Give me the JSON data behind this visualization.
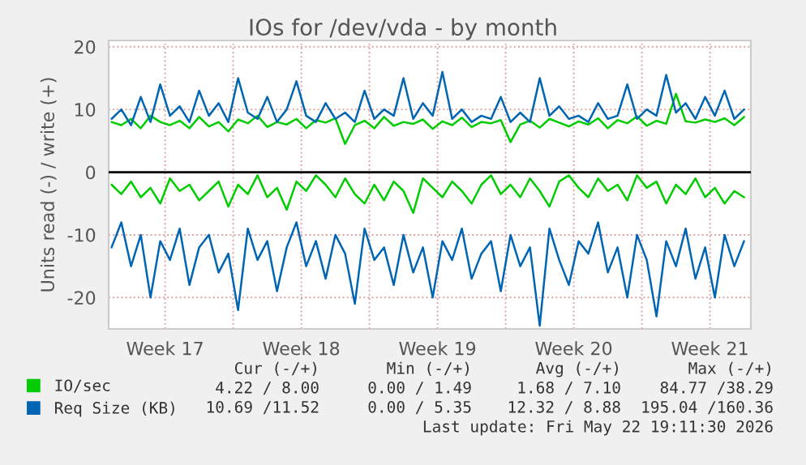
{
  "chart_data": {
    "type": "line",
    "title": "IOs for /dev/vda - by month",
    "ylabel": "Units read (-) / write (+)",
    "x": [
      "2026-04-20T18:00",
      "2026-04-21T06:00",
      "2026-04-21T18:00",
      "2026-04-22T06:00",
      "2026-04-22T18:00",
      "2026-04-23T06:00",
      "2026-04-23T18:00",
      "2026-04-24T06:00",
      "2026-04-24T18:00",
      "2026-04-25T06:00",
      "2026-04-25T18:00",
      "2026-04-26T06:00",
      "2026-04-26T18:00",
      "2026-04-27T06:00",
      "2026-04-27T18:00",
      "2026-04-28T06:00",
      "2026-04-28T18:00",
      "2026-04-29T06:00",
      "2026-04-29T18:00",
      "2026-04-30T06:00",
      "2026-04-30T18:00",
      "2026-05-01T06:00",
      "2026-05-01T18:00",
      "2026-05-02T06:00",
      "2026-05-02T18:00",
      "2026-05-03T06:00",
      "2026-05-03T18:00",
      "2026-05-04T06:00",
      "2026-05-04T18:00",
      "2026-05-05T06:00",
      "2026-05-05T18:00",
      "2026-05-06T06:00",
      "2026-05-06T18:00",
      "2026-05-07T06:00",
      "2026-05-07T18:00",
      "2026-05-08T06:00",
      "2026-05-08T18:00",
      "2026-05-09T06:00",
      "2026-05-09T18:00",
      "2026-05-10T06:00",
      "2026-05-10T18:00",
      "2026-05-11T06:00",
      "2026-05-11T18:00",
      "2026-05-12T06:00",
      "2026-05-12T18:00",
      "2026-05-13T06:00",
      "2026-05-13T18:00",
      "2026-05-14T06:00",
      "2026-05-14T18:00",
      "2026-05-15T06:00",
      "2026-05-15T18:00",
      "2026-05-16T06:00",
      "2026-05-16T18:00",
      "2026-05-17T06:00",
      "2026-05-17T18:00",
      "2026-05-18T06:00",
      "2026-05-18T18:00",
      "2026-05-19T06:00",
      "2026-05-19T18:00",
      "2026-05-20T06:00",
      "2026-05-20T18:00",
      "2026-05-21T06:00",
      "2026-05-21T18:00",
      "2026-05-22T06:00",
      "2026-05-22T18:00",
      "2026-05-23T06:00"
    ],
    "series": [
      {
        "name": "IO/sec",
        "color": "#00cc00",
        "values": [
          8,
          7.5,
          8.5,
          7,
          9,
          8,
          7.5,
          8.2,
          7,
          8.8,
          7.3,
          8,
          6.5,
          8.4,
          7.8,
          9,
          7.2,
          8,
          7.6,
          8.5,
          7,
          8.3,
          7.9,
          8.6,
          4.5,
          7.5,
          8.2,
          7,
          8.8,
          7.4,
          8,
          7.7,
          8.4,
          6.9,
          8.1,
          7.5,
          8.7,
          7.2,
          8,
          7.8,
          8.3,
          4.8,
          7.6,
          8.2,
          7.1,
          8.5,
          7.9,
          7.3,
          8.1,
          7.6,
          8.6,
          7,
          8.3,
          7.8,
          8.9,
          7.4,
          8.2,
          7.7,
          12.5,
          8.1,
          7.9,
          8.4,
          8,
          8.6,
          7.5,
          8.8
        ]
      },
      {
        "color": "#00cc00",
        "values": [
          -2,
          -3.5,
          -1.5,
          -4,
          -2.5,
          -5,
          -1,
          -3,
          -2,
          -4.5,
          -3,
          -1.5,
          -5.5,
          -2,
          -3.5,
          -0.5,
          -4,
          -2.5,
          -6,
          -1.5,
          -3,
          -0.5,
          -2,
          -4,
          -1,
          -3.5,
          -5,
          -2,
          -4.5,
          -1.5,
          -3,
          -6.5,
          -1,
          -2.5,
          -4,
          -1.5,
          -3,
          -5,
          -2,
          -0.5,
          -3.5,
          -2,
          -4,
          -1,
          -3,
          -5.5,
          -1.5,
          -0.5,
          -2.5,
          -4,
          -1,
          -3,
          -2,
          -4.5,
          -0.5,
          -2.5,
          -1.5,
          -5,
          -2,
          -3.5,
          -1,
          -4,
          -2.5,
          -5,
          -3,
          -4
        ]
      },
      {
        "name": "Req Size (KB)",
        "color": "#0066b3",
        "values": [
          8.5,
          10,
          7.5,
          12,
          8,
          14,
          9,
          10.5,
          8,
          13,
          9,
          11,
          8,
          15,
          9.5,
          8.5,
          12,
          8,
          10,
          14.5,
          9,
          8,
          11,
          8.5,
          9.5,
          8,
          13,
          8.5,
          10,
          9,
          15,
          8.5,
          11,
          9,
          16,
          8.5,
          10,
          8,
          9,
          8.5,
          12,
          8,
          9.5,
          8,
          15,
          9,
          10.5,
          8.5,
          9,
          8,
          11,
          8.5,
          9,
          14,
          8.5,
          10,
          9,
          15.5,
          9.5,
          11,
          8.5,
          12,
          9,
          13,
          8.5,
          10
        ]
      },
      {
        "color": "#0066b3",
        "values": [
          -12,
          -8,
          -15,
          -10,
          -20,
          -11,
          -14,
          -9,
          -18,
          -12,
          -10,
          -16,
          -13,
          -22,
          -9,
          -14,
          -11,
          -19,
          -12,
          -8,
          -15,
          -11,
          -17,
          -10,
          -13,
          -21,
          -9,
          -14,
          -12,
          -18,
          -10,
          -16,
          -12,
          -20,
          -11,
          -14,
          -9,
          -17,
          -13,
          -11,
          -19,
          -10,
          -15,
          -12,
          -24.5,
          -9,
          -14,
          -18,
          -11,
          -13,
          -8,
          -16,
          -12,
          -20,
          -10,
          -14,
          -23,
          -11,
          -15,
          -9,
          -17,
          -12,
          -20,
          -10,
          -15,
          -11
        ]
      }
    ],
    "xlim": [
      "2026-04-20T14:24",
      "2026-05-23T14:24"
    ],
    "xticks": [
      {
        "value": "2026-04-23T12:00",
        "label": "Week 17"
      },
      {
        "value": "2026-04-27",
        "label": null
      },
      {
        "value": "2026-04-30T12:00",
        "label": "Week 18"
      },
      {
        "value": "2026-05-04",
        "label": null
      },
      {
        "value": "2026-05-07T12:00",
        "label": "Week 19"
      },
      {
        "value": "2026-05-11",
        "label": null
      },
      {
        "value": "2026-05-14T12:00",
        "label": "Week 20"
      },
      {
        "value": "2026-05-18",
        "label": null
      },
      {
        "value": "2026-05-21T12:00",
        "label": "Week 21"
      }
    ],
    "ylim": [
      -25,
      21
    ],
    "yticks": [
      -20,
      -10,
      0,
      10,
      20
    ],
    "ref_lines": [
      {
        "axis": "y",
        "value": 0,
        "color": "#000000"
      }
    ],
    "grid": true,
    "legend": "bottom left",
    "marker": "none",
    "line_style": "solid",
    "annotations": [
      "Cur (-/+)",
      "Min (-/+)",
      "Avg (-/+)",
      "Max (-/+)",
      "4.22 / 8.00",
      "0.00 / 1.49",
      "1.68 / 7.10",
      "84.77 /38.29",
      "10.69 /11.52",
      "0.00 / 5.35",
      "12.32 / 8.88",
      "195.04 /160.36",
      "Last update: Fri May 22 19:11:30 2026"
    ]
  }
}
